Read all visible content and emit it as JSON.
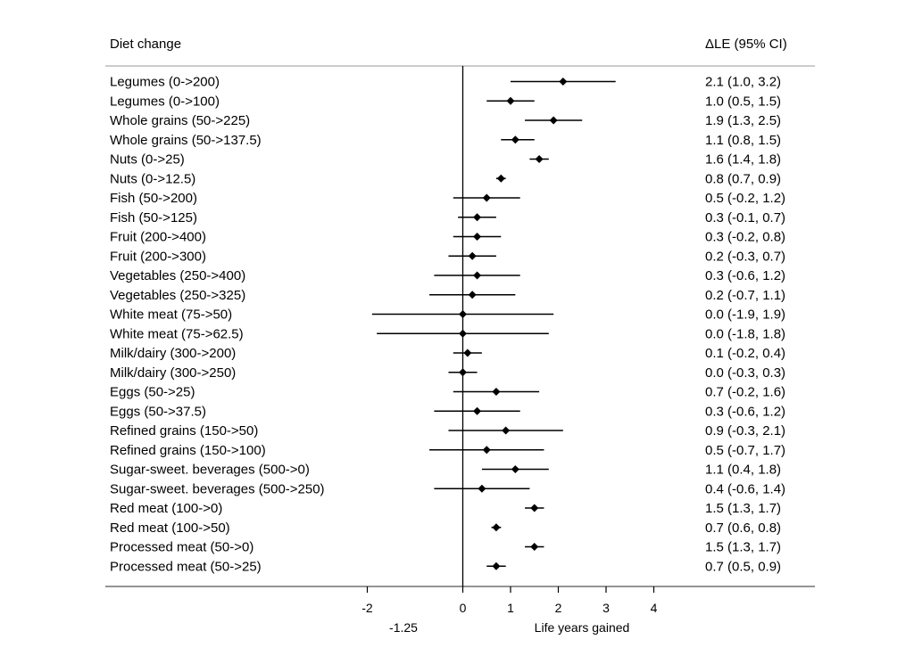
{
  "header": {
    "left": "Diet change",
    "right": "ΔLE (95% CI)"
  },
  "chart_data": {
    "type": "forest",
    "xlabel": "Life years gained",
    "xlim": [
      -2,
      4
    ],
    "xticks": [
      -2,
      0,
      1,
      2,
      3,
      4
    ],
    "extra_label": "-1.25",
    "reference_line": 0,
    "rows": [
      {
        "label": "Legumes (0->200)",
        "est": 2.1,
        "lo": 1.0,
        "hi": 3.2,
        "text": "2.1 (1.0, 3.2)"
      },
      {
        "label": "Legumes (0->100)",
        "est": 1.0,
        "lo": 0.5,
        "hi": 1.5,
        "text": "1.0 (0.5, 1.5)"
      },
      {
        "label": "Whole grains (50->225)",
        "est": 1.9,
        "lo": 1.3,
        "hi": 2.5,
        "text": "1.9 (1.3, 2.5)"
      },
      {
        "label": "Whole grains (50->137.5)",
        "est": 1.1,
        "lo": 0.8,
        "hi": 1.5,
        "text": "1.1 (0.8, 1.5)"
      },
      {
        "label": "Nuts (0->25)",
        "est": 1.6,
        "lo": 1.4,
        "hi": 1.8,
        "text": "1.6 (1.4, 1.8)"
      },
      {
        "label": "Nuts (0->12.5)",
        "est": 0.8,
        "lo": 0.7,
        "hi": 0.9,
        "text": "0.8 (0.7, 0.9)"
      },
      {
        "label": "Fish (50->200)",
        "est": 0.5,
        "lo": -0.2,
        "hi": 1.2,
        "text": "0.5 (-0.2, 1.2)"
      },
      {
        "label": "Fish (50->125)",
        "est": 0.3,
        "lo": -0.1,
        "hi": 0.7,
        "text": "0.3 (-0.1, 0.7)"
      },
      {
        "label": "Fruit (200->400)",
        "est": 0.3,
        "lo": -0.2,
        "hi": 0.8,
        "text": "0.3 (-0.2, 0.8)"
      },
      {
        "label": "Fruit (200->300)",
        "est": 0.2,
        "lo": -0.3,
        "hi": 0.7,
        "text": "0.2 (-0.3, 0.7)"
      },
      {
        "label": "Vegetables (250->400)",
        "est": 0.3,
        "lo": -0.6,
        "hi": 1.2,
        "text": "0.3 (-0.6, 1.2)"
      },
      {
        "label": "Vegetables (250->325)",
        "est": 0.2,
        "lo": -0.7,
        "hi": 1.1,
        "text": "0.2 (-0.7, 1.1)"
      },
      {
        "label": "White meat (75->50)",
        "est": 0.0,
        "lo": -1.9,
        "hi": 1.9,
        "text": "0.0 (-1.9, 1.9)"
      },
      {
        "label": "White meat (75->62.5)",
        "est": 0.0,
        "lo": -1.8,
        "hi": 1.8,
        "text": "0.0 (-1.8, 1.8)"
      },
      {
        "label": "Milk/dairy (300->200)",
        "est": 0.1,
        "lo": -0.2,
        "hi": 0.4,
        "text": "0.1 (-0.2, 0.4)"
      },
      {
        "label": "Milk/dairy (300->250)",
        "est": 0.0,
        "lo": -0.3,
        "hi": 0.3,
        "text": "0.0 (-0.3, 0.3)"
      },
      {
        "label": "Eggs (50->25)",
        "est": 0.7,
        "lo": -0.2,
        "hi": 1.6,
        "text": "0.7 (-0.2, 1.6)"
      },
      {
        "label": "Eggs (50->37.5)",
        "est": 0.3,
        "lo": -0.6,
        "hi": 1.2,
        "text": "0.3 (-0.6, 1.2)"
      },
      {
        "label": "Refined grains (150->50)",
        "est": 0.9,
        "lo": -0.3,
        "hi": 2.1,
        "text": "0.9 (-0.3, 2.1)"
      },
      {
        "label": "Refined grains (150->100)",
        "est": 0.5,
        "lo": -0.7,
        "hi": 1.7,
        "text": "0.5 (-0.7, 1.7)"
      },
      {
        "label": "Sugar-sweet. beverages (500->0)",
        "est": 1.1,
        "lo": 0.4,
        "hi": 1.8,
        "text": "1.1 (0.4, 1.8)"
      },
      {
        "label": "Sugar-sweet. beverages (500->250)",
        "est": 0.4,
        "lo": -0.6,
        "hi": 1.4,
        "text": "0.4 (-0.6, 1.4)"
      },
      {
        "label": "Red meat (100->0)",
        "est": 1.5,
        "lo": 1.3,
        "hi": 1.7,
        "text": "1.5 (1.3, 1.7)"
      },
      {
        "label": "Red meat (100->50)",
        "est": 0.7,
        "lo": 0.6,
        "hi": 0.8,
        "text": "0.7 (0.6, 0.8)"
      },
      {
        "label": "Processed meat (50->0)",
        "est": 1.5,
        "lo": 1.3,
        "hi": 1.7,
        "text": "1.5 (1.3, 1.7)"
      },
      {
        "label": "Processed meat (50->25)",
        "est": 0.7,
        "lo": 0.5,
        "hi": 0.9,
        "text": "0.7 (0.5, 0.9)"
      }
    ]
  }
}
